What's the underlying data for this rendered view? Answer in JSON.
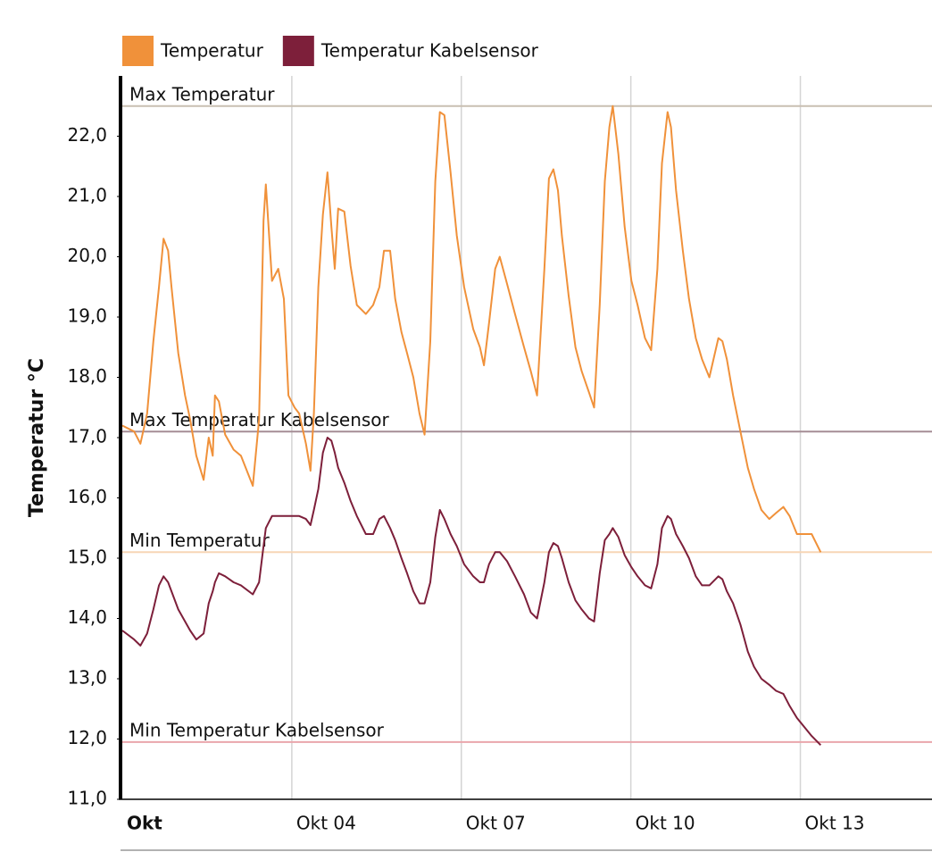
{
  "chart_data": {
    "type": "line",
    "y_label": "Temperatur °C",
    "x": [
      1.0,
      1.21,
      1.32,
      1.44,
      1.55,
      1.65,
      1.73,
      1.81,
      1.87,
      1.99,
      2.11,
      2.2,
      2.31,
      2.44,
      2.53,
      2.6,
      2.64,
      2.71,
      2.82,
      2.97,
      3.1,
      3.31,
      3.42,
      3.5,
      3.54,
      3.65,
      3.76,
      3.86,
      3.94,
      4.05,
      4.13,
      4.25,
      4.33,
      4.39,
      4.47,
      4.55,
      4.63,
      4.7,
      4.76,
      4.82,
      4.93,
      5.04,
      5.15,
      5.31,
      5.44,
      5.55,
      5.63,
      5.74,
      5.83,
      5.94,
      6.04,
      6.15,
      6.26,
      6.35,
      6.45,
      6.54,
      6.62,
      6.7,
      6.81,
      6.92,
      7.05,
      7.21,
      7.33,
      7.4,
      7.49,
      7.6,
      7.68,
      7.81,
      7.95,
      8.11,
      8.23,
      8.34,
      8.47,
      8.55,
      8.63,
      8.71,
      8.78,
      8.9,
      9.02,
      9.13,
      9.26,
      9.35,
      9.45,
      9.54,
      9.62,
      9.68,
      9.78,
      9.89,
      10.01,
      10.12,
      10.25,
      10.36,
      10.47,
      10.55,
      10.65,
      10.71,
      10.8,
      10.92,
      11.03,
      11.15,
      11.26,
      11.39,
      11.55,
      11.62,
      11.7,
      11.81,
      11.94,
      12.07,
      12.18,
      12.31,
      12.45,
      12.57,
      12.7,
      12.81,
      12.94,
      13.2,
      13.36
    ],
    "series": [
      {
        "name": "Temperatur",
        "color": "#f0913a",
        "values": [
          17.2,
          17.1,
          16.9,
          17.4,
          18.6,
          19.5,
          20.3,
          20.1,
          19.5,
          18.4,
          17.7,
          17.3,
          16.7,
          16.3,
          17.0,
          16.7,
          17.7,
          17.6,
          17.05,
          16.8,
          16.7,
          16.2,
          17.3,
          20.6,
          21.2,
          19.6,
          19.8,
          19.3,
          17.7,
          17.5,
          17.4,
          16.9,
          16.45,
          17.4,
          19.5,
          20.7,
          21.4,
          20.5,
          19.8,
          20.8,
          20.75,
          19.85,
          19.2,
          19.05,
          19.2,
          19.5,
          20.1,
          20.1,
          19.3,
          18.75,
          18.4,
          18.0,
          17.4,
          17.05,
          18.6,
          21.25,
          22.4,
          22.35,
          21.4,
          20.35,
          19.5,
          18.8,
          18.5,
          18.2,
          18.9,
          19.8,
          20.0,
          19.55,
          19.05,
          18.5,
          18.1,
          17.7,
          19.8,
          21.3,
          21.45,
          21.1,
          20.35,
          19.35,
          18.5,
          18.1,
          17.75,
          17.5,
          19.2,
          21.25,
          22.15,
          22.5,
          21.7,
          20.5,
          19.6,
          19.2,
          18.65,
          18.45,
          19.8,
          21.55,
          22.4,
          22.15,
          21.1,
          20.1,
          19.3,
          18.65,
          18.3,
          18.0,
          18.65,
          18.6,
          18.3,
          17.7,
          17.1,
          16.5,
          16.15,
          15.8,
          15.65,
          15.75,
          15.85,
          15.7,
          15.4,
          15.4,
          15.1
        ]
      },
      {
        "name": "Temperatur Kabelsensor",
        "color": "#7d1f3a",
        "values": [
          13.8,
          13.65,
          13.55,
          13.75,
          14.15,
          14.55,
          14.7,
          14.6,
          14.45,
          14.15,
          13.95,
          13.8,
          13.65,
          13.75,
          14.25,
          14.45,
          14.6,
          14.75,
          14.7,
          14.6,
          14.55,
          14.4,
          14.6,
          15.2,
          15.5,
          15.7,
          15.7,
          15.7,
          15.7,
          15.7,
          15.7,
          15.65,
          15.55,
          15.8,
          16.15,
          16.75,
          17.0,
          16.95,
          16.75,
          16.5,
          16.25,
          15.95,
          15.7,
          15.4,
          15.4,
          15.65,
          15.7,
          15.5,
          15.3,
          15.0,
          14.75,
          14.45,
          14.25,
          14.25,
          14.6,
          15.35,
          15.8,
          15.65,
          15.4,
          15.2,
          14.9,
          14.7,
          14.6,
          14.6,
          14.9,
          15.1,
          15.1,
          14.95,
          14.7,
          14.4,
          14.1,
          14.0,
          14.6,
          15.1,
          15.25,
          15.2,
          15.0,
          14.6,
          14.3,
          14.15,
          14.0,
          13.95,
          14.75,
          15.3,
          15.4,
          15.5,
          15.35,
          15.05,
          14.85,
          14.7,
          14.55,
          14.5,
          14.9,
          15.5,
          15.7,
          15.65,
          15.4,
          15.2,
          15.0,
          14.7,
          14.55,
          14.55,
          14.7,
          14.65,
          14.45,
          14.25,
          13.9,
          13.45,
          13.2,
          13.0,
          12.9,
          12.8,
          12.75,
          12.55,
          12.35,
          12.05,
          11.9
        ]
      }
    ],
    "reference_lines": [
      {
        "label": "Max Temperatur",
        "value": 22.5,
        "color": "#c9bfb2",
        "label_color": "#9c8a78"
      },
      {
        "label": "Max Temperatur Kabelsensor",
        "value": 17.1,
        "color": "#a58d95",
        "label_color": "#6a3434"
      },
      {
        "label": "Min Temperatur",
        "value": 15.1,
        "color": "#f7d6b6",
        "label_color": "#f3a862"
      },
      {
        "label": "Min Temperatur Kabelsensor",
        "value": 11.95,
        "color": "#eaa6ac",
        "label_color": "#c5535f"
      }
    ],
    "xlim": [
      1,
      15.33
    ],
    "xticks": [
      {
        "value": 1,
        "label": "Okt"
      },
      {
        "value": 4,
        "label": "Okt 04"
      },
      {
        "value": 7,
        "label": "Okt 07"
      },
      {
        "value": 10,
        "label": "Okt 10"
      },
      {
        "value": 13,
        "label": "Okt 13"
      }
    ],
    "ylim": [
      11,
      23
    ],
    "yticks": [
      {
        "value": 11,
        "label": "11,0"
      },
      {
        "value": 12,
        "label": "12,0"
      },
      {
        "value": 13,
        "label": "13,0"
      },
      {
        "value": 14,
        "label": "14,0"
      },
      {
        "value": 15,
        "label": "15,0"
      },
      {
        "value": 16,
        "label": "16,0"
      },
      {
        "value": 17,
        "label": "17,0"
      },
      {
        "value": 18,
        "label": "18,0"
      },
      {
        "value": 19,
        "label": "19,0"
      },
      {
        "value": 20,
        "label": "20,0"
      },
      {
        "value": 21,
        "label": "21,0"
      },
      {
        "value": 22,
        "label": "22,0"
      }
    ],
    "grid": true,
    "legend": "top"
  }
}
